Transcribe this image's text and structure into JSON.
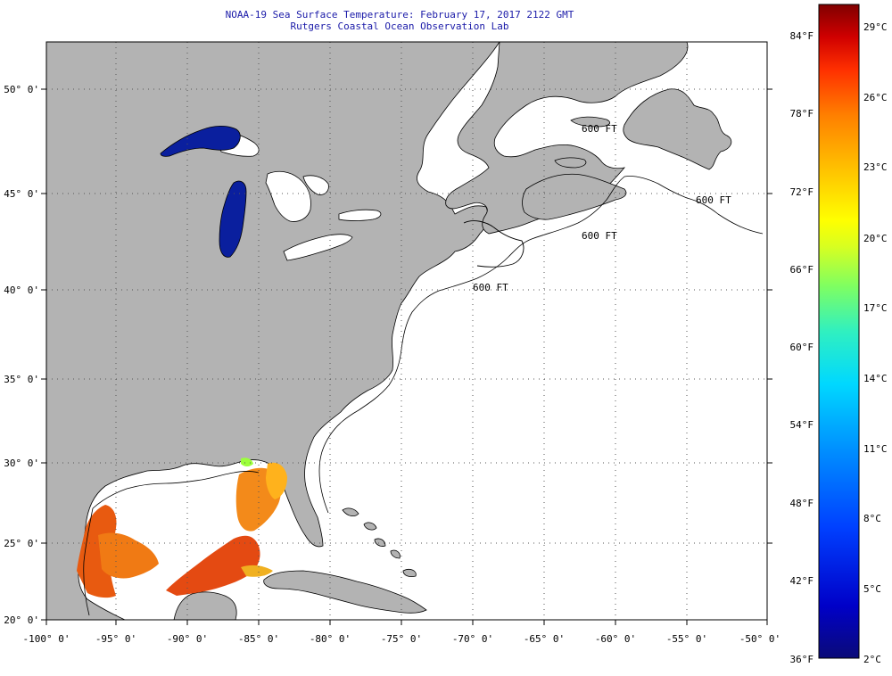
{
  "title": {
    "line1": "NOAA-19 Sea Surface Temperature:  February 17, 2017 2122 GMT",
    "line2": "Rutgers Coastal Ocean Observation Lab"
  },
  "axes": {
    "longitude_labels": [
      "-100° 0'",
      "-95° 0'",
      "-90° 0'",
      "-85° 0'",
      "-80° 0'",
      "-75° 0'",
      "-70° 0'",
      "-65° 0'",
      "-60° 0'",
      "-55° 0'",
      "-50° 0'"
    ],
    "latitude_labels": [
      "50° 0'",
      "45° 0'",
      "40° 0'",
      "35° 0'",
      "30° 0'",
      "25° 0'",
      "20° 0'"
    ]
  },
  "isobath_labels": [
    "600 FT",
    "600 FT",
    "600 FT",
    "600 FT"
  ],
  "colorbar": {
    "fahrenheit_labels": [
      "84°F",
      "78°F",
      "72°F",
      "66°F",
      "60°F",
      "54°F",
      "48°F",
      "42°F",
      "36°F"
    ],
    "celsius_labels": [
      "29°C",
      "26°C",
      "23°C",
      "20°C",
      "17°C",
      "14°C",
      "11°C",
      "8°C",
      "5°C",
      "2°C"
    ]
  },
  "colors": {
    "land": "#b3b3b3",
    "ocean_no_data": "#ffffff",
    "title_text": "#1a1aa8",
    "lake_cold": "#0a1f9e",
    "colormap": [
      "#0b0b78",
      "#0000c8",
      "#0040ff",
      "#0090ff",
      "#00d8ff",
      "#30f0c0",
      "#80ff60",
      "#d8ff20",
      "#ffff00",
      "#ffc000",
      "#ff8000",
      "#ff3000",
      "#d00000",
      "#800000"
    ]
  }
}
